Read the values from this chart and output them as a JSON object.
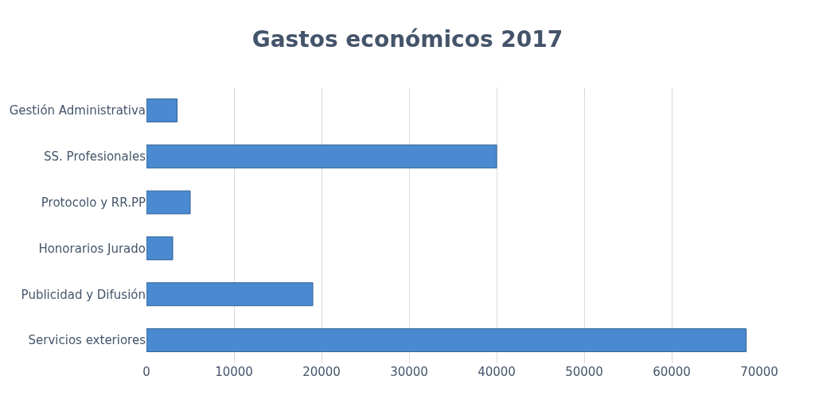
{
  "chart_data": {
    "type": "bar",
    "orientation": "horizontal",
    "title": "Gastos económicos 2017",
    "categories": [
      "Gestión Administrativa",
      "SS. Profesionales",
      "Protocolo y RR.PP",
      "Honorarios Jurado",
      "Publicidad y Difusión",
      "Servicios exteriores"
    ],
    "values": [
      3500,
      40000,
      5000,
      3000,
      19000,
      68500
    ],
    "color": "#4a8ad0",
    "xlim": [
      0,
      70000
    ],
    "xticks": [
      0,
      10000,
      20000,
      30000,
      40000,
      50000,
      60000,
      70000
    ],
    "grid": "x"
  }
}
